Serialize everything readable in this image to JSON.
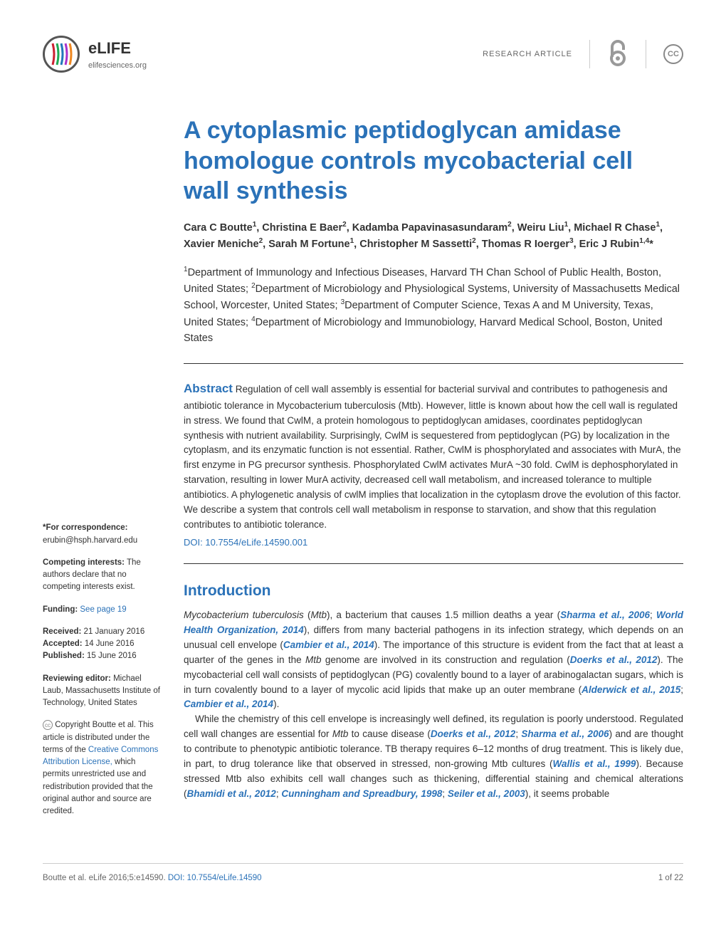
{
  "header": {
    "brand": "eLIFE",
    "site": "elifesciences.org",
    "article_type": "RESEARCH ARTICLE",
    "oa_glyph": "∂",
    "cc_label": "CC"
  },
  "title": "A cytoplasmic peptidoglycan amidase homologue controls mycobacterial cell wall synthesis",
  "authors_html": "Cara C Boutte<sup>1</sup>, Christina E Baer<sup>2</sup>, Kadamba Papavinasasundaram<sup>2</sup>, Weiru Liu<sup>1</sup>, Michael R Chase<sup>1</sup>, Xavier Meniche<sup>2</sup>, Sarah M Fortune<sup>1</sup>, Christopher M Sassetti<sup>2</sup>, Thomas R Ioerger<sup>3</sup>, Eric J Rubin<sup>1,4</sup>*",
  "affiliations_html": "<sup>1</sup>Department of Immunology and Infectious Diseases, Harvard TH Chan School of Public Health, Boston, United States; <sup>2</sup>Department of Microbiology and Physiological Systems, University of Massachusetts Medical School, Worcester, United States; <sup>3</sup>Department of Computer Science, Texas A and M University, Texas, United States; <sup>4</sup>Department of Microbiology and Immunobiology, Harvard Medical School, Boston, United States",
  "abstract": {
    "label": "Abstract",
    "text": "Regulation of cell wall assembly is essential for bacterial survival and contributes to pathogenesis and antibiotic tolerance in Mycobacterium tuberculosis (Mtb). However, little is known about how the cell wall is regulated in stress. We found that CwlM, a protein homologous to peptidoglycan amidases, coordinates peptidoglycan synthesis with nutrient availability. Surprisingly, CwlM is sequestered from peptidoglycan (PG) by localization in the cytoplasm, and its enzymatic function is not essential. Rather, CwlM is phosphorylated and associates with MurA, the first enzyme in PG precursor synthesis. Phosphorylated CwlM activates MurA ~30 fold. CwlM is dephosphorylated in starvation, resulting in lower MurA activity, decreased cell wall metabolism, and increased tolerance to multiple antibiotics. A phylogenetic analysis of cwlM implies that localization in the cytoplasm drove the evolution of this factor. We describe a system that controls cell wall metabolism in response to starvation, and show that this regulation contributes to antibiotic tolerance.",
    "doi": "DOI: 10.7554/eLife.14590.001"
  },
  "sidebar": {
    "correspondence_label": "*For correspondence:",
    "correspondence_email": "erubin@hsph.harvard.edu",
    "competing_label": "Competing interests:",
    "competing_text": "The authors declare that no competing interests exist.",
    "funding_label": "Funding:",
    "funding_link": "See page 19",
    "received_label": "Received:",
    "received_date": "21 January 2016",
    "accepted_label": "Accepted:",
    "accepted_date": "14 June 2016",
    "published_label": "Published:",
    "published_date": "15 June 2016",
    "reviewing_label": "Reviewing editor:",
    "reviewing_text": "Michael Laub, Massachusetts Institute of Technology, United States",
    "copyright_text_1": "Copyright Boutte et al. This article is distributed under the terms of the ",
    "copyright_link": "Creative Commons Attribution License,",
    "copyright_text_2": " which permits unrestricted use and redistribution provided that the original author and source are credited."
  },
  "intro": {
    "heading": "Introduction",
    "body_html": "<span class='ital'>Mycobacterium tuberculosis</span> (<span class='ital'>Mtb</span>), a bacterium that causes 1.5 million deaths a year (<span class='ref'>Sharma et al., 2006</span>; <span class='ref'>World Health Organization, 2014</span>), differs from many bacterial pathogens in its infection strategy, which depends on an unusual cell envelope (<span class='ref'>Cambier et al., 2014</span>). The importance of this structure is evident from the fact that at least a quarter of the genes in the <span class='ital'>Mtb</span> genome are involved in its construction and regulation (<span class='ref'>Doerks et al., 2012</span>). The mycobacterial cell wall consists of peptidoglycan (PG) covalently bound to a layer of arabinogalactan sugars, which is in turn covalently bound to a layer of mycolic acid lipids that make up an outer membrane (<span class='ref'>Alderwick et al., 2015</span>; <span class='ref'>Cambier et al., 2014</span>).<br>&nbsp;&nbsp;&nbsp;&nbsp;While the chemistry of this cell envelope is increasingly well defined, its regulation is poorly understood. Regulated cell wall changes are essential for <span class='ital'>Mtb</span> to cause disease (<span class='ref'>Doerks et al., 2012</span>; <span class='ref'>Sharma et al., 2006</span>) and are thought to contribute to phenotypic antibiotic tolerance. TB therapy requires 6–12 months of drug treatment. This is likely due, in part, to drug tolerance like that observed in stressed, non-growing Mtb cultures (<span class='ref'>Wallis et al., 1999</span>). Because stressed Mtb also exhibits cell wall changes such as thickening, differential staining and chemical alterations (<span class='ref'>Bhamidi et al., 2012</span>; <span class='ref'>Cunningham and Spreadbury, 1998</span>; <span class='ref'>Seiler et al., 2003</span>), it seems probable"
  },
  "footer": {
    "citation": "Boutte et al. eLife 2016;5:e14590.",
    "doi": "DOI: 10.7554/eLife.14590",
    "page": "1 of 22"
  },
  "colors": {
    "primary": "#2b72b8",
    "text": "#333333",
    "muted": "#666666"
  }
}
